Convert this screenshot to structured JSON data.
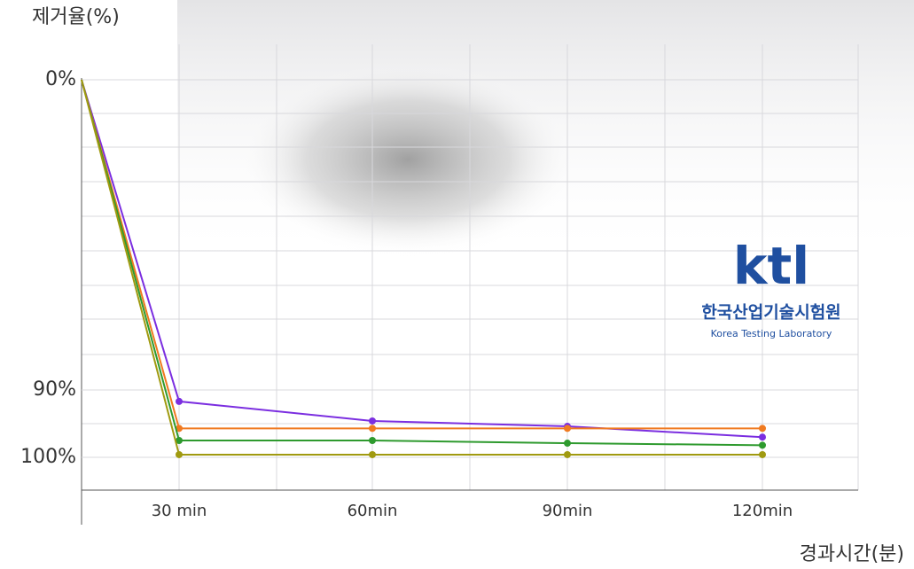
{
  "chart_data": {
    "type": "line",
    "y_axis_label": "제거율(%)",
    "x_axis_label": "경과시간(분)",
    "categories": [
      null,
      "30 min",
      "60min",
      "90min",
      "120min"
    ],
    "yticks": [
      {
        "value": 0,
        "label": "0%"
      },
      {
        "value": 90,
        "label": "90%"
      },
      {
        "value": 100,
        "label": "100%"
      }
    ],
    "series": [
      {
        "color": "#7b2ee0",
        "values": [
          0,
          91.7,
          94.6,
          95.4,
          97.0
        ]
      },
      {
        "color": "#f07a20",
        "values": [
          0,
          95.7,
          95.7,
          95.7,
          95.7
        ]
      },
      {
        "color": "#2e9a2e",
        "values": [
          0,
          97.5,
          97.5,
          97.9,
          98.2
        ]
      },
      {
        "color": "#a09a10",
        "values": [
          0,
          99.6,
          99.6,
          99.6,
          99.6
        ]
      }
    ]
  },
  "logo": {
    "mark": "ktl",
    "name": "한국산업기술시험원",
    "english": "Korea Testing Laboratory"
  }
}
